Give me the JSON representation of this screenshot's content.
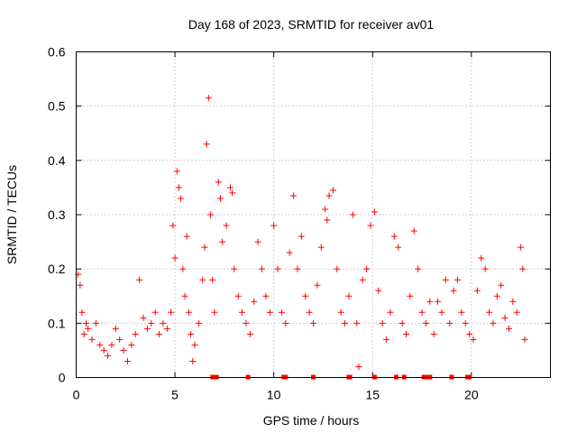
{
  "chart_data": {
    "type": "scatter",
    "title": "Day 168 of 2023, SRMTID for receiver av01",
    "xlabel": "GPS time / hours",
    "ylabel": "SRMTID / TECUs",
    "xlim": [
      0,
      24
    ],
    "ylim": [
      0,
      0.6
    ],
    "xticks": [
      "0",
      "5",
      "10",
      "15",
      "20"
    ],
    "yticks": [
      "0",
      "0.1",
      "0.2",
      "0.3",
      "0.4",
      "0.5",
      "0.6"
    ],
    "grid": true,
    "marker": "+",
    "color": "#ff0000",
    "series": [
      {
        "name": "SRMTID",
        "points": [
          [
            0.1,
            0.19
          ],
          [
            0.2,
            0.17
          ],
          [
            0.3,
            0.12
          ],
          [
            0.4,
            0.08
          ],
          [
            0.5,
            0.1
          ],
          [
            0.6,
            0.09
          ],
          [
            0.8,
            0.07
          ],
          [
            1.0,
            0.1
          ],
          [
            1.2,
            0.06
          ],
          [
            1.4,
            0.05
          ],
          [
            1.6,
            0.04
          ],
          [
            1.8,
            0.06
          ],
          [
            2.0,
            0.09
          ],
          [
            2.2,
            0.07
          ],
          [
            2.4,
            0.05
          ],
          [
            2.6,
            0.03
          ],
          [
            2.8,
            0.06
          ],
          [
            3.0,
            0.08
          ],
          [
            3.2,
            0.18
          ],
          [
            3.4,
            0.11
          ],
          [
            3.6,
            0.09
          ],
          [
            3.8,
            0.1
          ],
          [
            4.0,
            0.12
          ],
          [
            4.2,
            0.08
          ],
          [
            4.4,
            0.1
          ],
          [
            4.6,
            0.09
          ],
          [
            4.8,
            0.12
          ],
          [
            4.9,
            0.28
          ],
          [
            5.0,
            0.22
          ],
          [
            5.1,
            0.38
          ],
          [
            5.2,
            0.35
          ],
          [
            5.3,
            0.33
          ],
          [
            5.4,
            0.2
          ],
          [
            5.5,
            0.15
          ],
          [
            5.6,
            0.26
          ],
          [
            5.7,
            0.12
          ],
          [
            5.8,
            0.08
          ],
          [
            5.9,
            0.03
          ],
          [
            6.0,
            0.06
          ],
          [
            6.2,
            0.1
          ],
          [
            6.4,
            0.18
          ],
          [
            6.5,
            0.24
          ],
          [
            6.6,
            0.43
          ],
          [
            6.7,
            0.515
          ],
          [
            6.8,
            0.3
          ],
          [
            6.9,
            0.18
          ],
          [
            7.0,
            0.12
          ],
          [
            7.2,
            0.36
          ],
          [
            7.3,
            0.33
          ],
          [
            7.4,
            0.25
          ],
          [
            7.6,
            0.28
          ],
          [
            7.8,
            0.35
          ],
          [
            7.9,
            0.34
          ],
          [
            8.0,
            0.2
          ],
          [
            8.2,
            0.15
          ],
          [
            8.4,
            0.12
          ],
          [
            8.6,
            0.1
          ],
          [
            8.8,
            0.08
          ],
          [
            9.0,
            0.14
          ],
          [
            9.2,
            0.25
          ],
          [
            9.4,
            0.2
          ],
          [
            9.6,
            0.15
          ],
          [
            9.8,
            0.12
          ],
          [
            10.0,
            0.28
          ],
          [
            10.2,
            0.2
          ],
          [
            10.4,
            0.12
          ],
          [
            10.6,
            0.1
          ],
          [
            10.8,
            0.23
          ],
          [
            11.0,
            0.335
          ],
          [
            11.2,
            0.2
          ],
          [
            11.4,
            0.26
          ],
          [
            11.6,
            0.15
          ],
          [
            11.8,
            0.12
          ],
          [
            12.0,
            0.1
          ],
          [
            12.2,
            0.17
          ],
          [
            12.4,
            0.24
          ],
          [
            12.6,
            0.31
          ],
          [
            12.7,
            0.29
          ],
          [
            12.8,
            0.335
          ],
          [
            13.0,
            0.345
          ],
          [
            13.2,
            0.2
          ],
          [
            13.4,
            0.12
          ],
          [
            13.6,
            0.1
          ],
          [
            13.8,
            0.15
          ],
          [
            14.0,
            0.3
          ],
          [
            14.2,
            0.1
          ],
          [
            14.3,
            0.02
          ],
          [
            14.5,
            0.18
          ],
          [
            14.7,
            0.2
          ],
          [
            14.9,
            0.28
          ],
          [
            15.1,
            0.305
          ],
          [
            15.3,
            0.16
          ],
          [
            15.5,
            0.1
          ],
          [
            15.7,
            0.07
          ],
          [
            15.9,
            0.12
          ],
          [
            16.1,
            0.26
          ],
          [
            16.3,
            0.24
          ],
          [
            16.5,
            0.1
          ],
          [
            16.7,
            0.08
          ],
          [
            16.9,
            0.15
          ],
          [
            17.1,
            0.27
          ],
          [
            17.3,
            0.2
          ],
          [
            17.5,
            0.12
          ],
          [
            17.7,
            0.1
          ],
          [
            17.9,
            0.14
          ],
          [
            18.1,
            0.08
          ],
          [
            18.3,
            0.14
          ],
          [
            18.5,
            0.12
          ],
          [
            18.7,
            0.18
          ],
          [
            18.9,
            0.1
          ],
          [
            19.1,
            0.16
          ],
          [
            19.3,
            0.18
          ],
          [
            19.5,
            0.12
          ],
          [
            19.7,
            0.1
          ],
          [
            19.9,
            0.08
          ],
          [
            20.1,
            0.07
          ],
          [
            20.3,
            0.16
          ],
          [
            20.5,
            0.22
          ],
          [
            20.7,
            0.2
          ],
          [
            20.9,
            0.12
          ],
          [
            21.1,
            0.1
          ],
          [
            21.3,
            0.15
          ],
          [
            21.5,
            0.17
          ],
          [
            21.7,
            0.11
          ],
          [
            21.9,
            0.09
          ],
          [
            22.1,
            0.14
          ],
          [
            22.3,
            0.12
          ],
          [
            22.5,
            0.24
          ],
          [
            22.6,
            0.2
          ],
          [
            22.7,
            0.07
          ]
        ]
      }
    ],
    "baseline_markers": [
      6.9,
      7.1,
      8.7,
      10.5,
      10.6,
      12.0,
      13.8,
      13.85,
      15.1,
      16.2,
      16.6,
      17.6,
      17.7,
      17.8,
      17.9,
      19.0,
      19.8,
      19.9
    ]
  }
}
